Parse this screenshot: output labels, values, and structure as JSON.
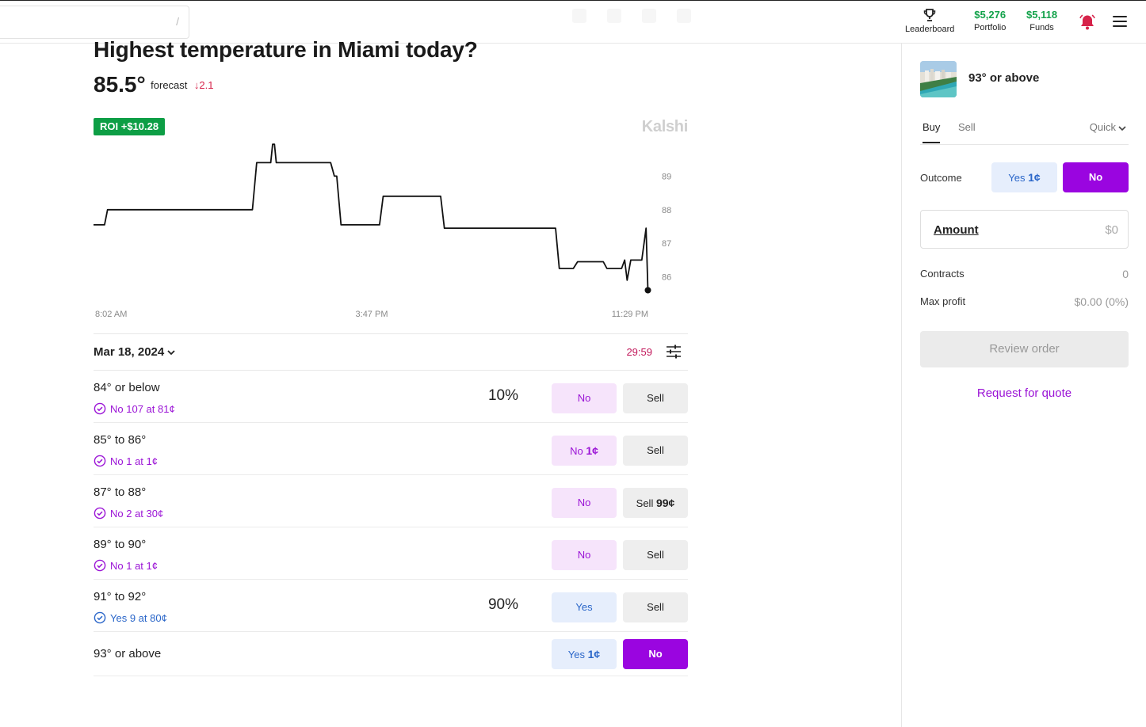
{
  "topbar": {
    "search_hint": "/",
    "leaderboard_label": "Leaderboard",
    "portfolio_value": "$5,276",
    "portfolio_label": "Portfolio",
    "funds_value": "$5,118",
    "funds_label": "Funds"
  },
  "market": {
    "title": "Highest temperature in Miami today?",
    "forecast_value": "85.5°",
    "forecast_label": "forecast",
    "forecast_delta": "↓2.1",
    "roi": "ROI +$10.28",
    "brand": "Kalshi"
  },
  "chart_data": {
    "type": "line",
    "y_ticks": [
      "89",
      "88",
      "87",
      "86"
    ],
    "x_ticks": [
      "8:02 AM",
      "3:47 PM",
      "11:29 PM"
    ],
    "ylim": [
      85.4,
      90.0
    ],
    "series": [
      {
        "values": [
          [
            0,
            87.55
          ],
          [
            1.8,
            87.55
          ],
          [
            2.3,
            88.0
          ],
          [
            26.0,
            88.0
          ],
          [
            26.7,
            89.4
          ],
          [
            29.0,
            89.4
          ],
          [
            29.3,
            89.95
          ],
          [
            29.6,
            89.95
          ],
          [
            29.9,
            89.4
          ],
          [
            38.8,
            89.4
          ],
          [
            39.4,
            89.0
          ],
          [
            39.8,
            89.0
          ],
          [
            40.5,
            87.55
          ],
          [
            46.8,
            87.55
          ],
          [
            47.4,
            88.4
          ],
          [
            56.8,
            88.4
          ],
          [
            57.4,
            87.45
          ],
          [
            75.6,
            87.45
          ],
          [
            76.2,
            86.25
          ],
          [
            78.5,
            86.25
          ],
          [
            79.2,
            86.45
          ],
          [
            83.4,
            86.45
          ],
          [
            84.0,
            86.25
          ],
          [
            86.4,
            86.25
          ],
          [
            86.9,
            86.5
          ],
          [
            87.3,
            85.9
          ],
          [
            87.9,
            86.5
          ],
          [
            89.7,
            86.5
          ],
          [
            90.4,
            87.45
          ],
          [
            90.7,
            85.6
          ]
        ]
      }
    ]
  },
  "list": {
    "date": "Mar 18, 2024",
    "timer": "29:59",
    "rows": [
      {
        "label": "84° or below",
        "position": "No 107 at 81¢",
        "pct": "10%",
        "btn_a": "No",
        "btn_a_price": "",
        "btn_b": "Sell",
        "btn_b_price": ""
      },
      {
        "label": "85° to 86°",
        "position": "No 1 at 1¢",
        "pct": "",
        "btn_a": "No",
        "btn_a_price": "1¢",
        "btn_b": "Sell",
        "btn_b_price": ""
      },
      {
        "label": "87° to 88°",
        "position": "No 2 at 30¢",
        "pct": "",
        "btn_a": "No",
        "btn_a_price": "",
        "btn_b": "Sell",
        "btn_b_price": "99¢"
      },
      {
        "label": "89° to 90°",
        "position": "No 1 at 1¢",
        "pct": "",
        "btn_a": "No",
        "btn_a_price": "",
        "btn_b": "Sell",
        "btn_b_price": ""
      },
      {
        "label": "91° to 92°",
        "position": "Yes 9 at 80¢",
        "pct": "90%",
        "btn_a": "Yes",
        "btn_a_price": "",
        "btn_b": "Sell",
        "btn_b_price": ""
      },
      {
        "label": "93° or above",
        "position": "",
        "pct": "",
        "btn_a": "Yes",
        "btn_a_price": "1¢",
        "btn_b": "No",
        "btn_b_price": ""
      }
    ]
  },
  "panel": {
    "title": "93° or above",
    "tab_buy": "Buy",
    "tab_sell": "Sell",
    "order_type": "Quick",
    "outcome_label": "Outcome",
    "outcome_yes": "Yes",
    "outcome_yes_price": "1¢",
    "outcome_no": "No",
    "amount_label": "Amount",
    "amount_value": "$0",
    "contracts_label": "Contracts",
    "contracts_value": "0",
    "max_profit_label": "Max profit",
    "max_profit_value": "$0.00 (0%)",
    "review_label": "Review order",
    "rfq_label": "Request for quote"
  },
  "colors": {
    "purple": "#9a05e0",
    "green": "#0d9e45",
    "blue": "#2a66c9",
    "red": "#d6234a"
  }
}
